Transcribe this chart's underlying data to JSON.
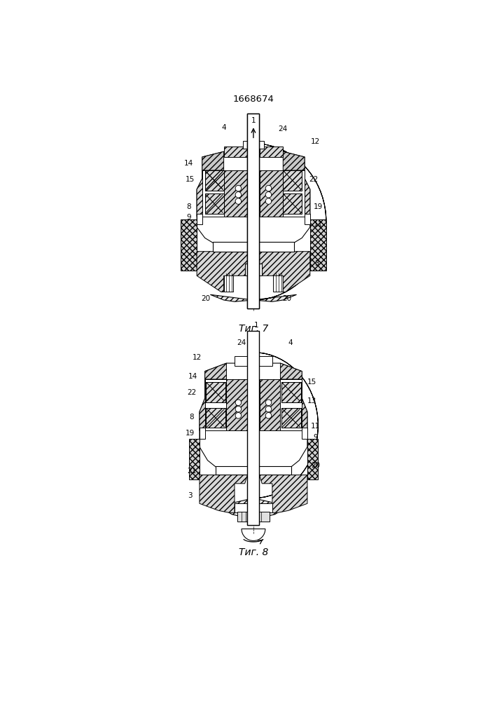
{
  "title": "1668674",
  "fig7_label": "Τиг. 7",
  "fig8_label": "Τиг. 8",
  "bg_color": "#ffffff",
  "line_color": "#000000"
}
